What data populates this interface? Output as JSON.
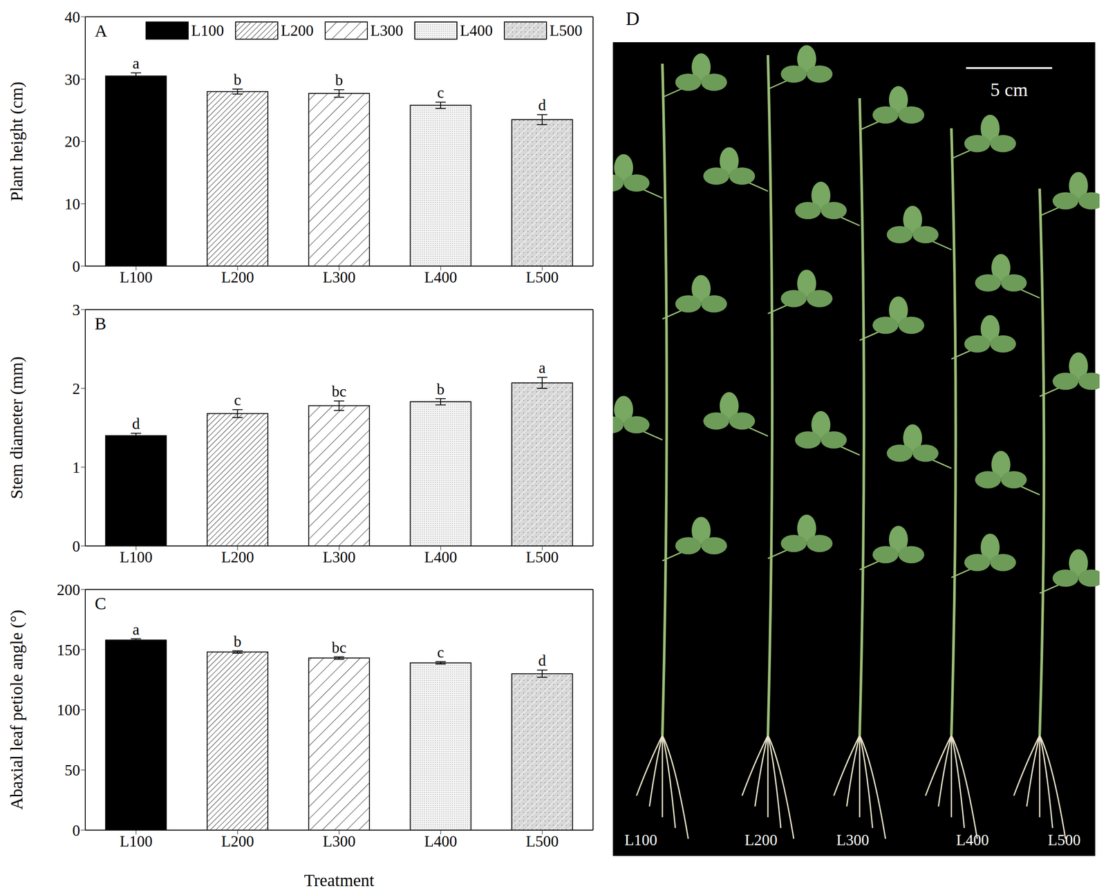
{
  "chart_data": [
    {
      "type": "bar",
      "title": "A",
      "ylabel": "Plant height (cm)",
      "categories": [
        "L100",
        "L200",
        "L300",
        "L400",
        "L500"
      ],
      "values": [
        30.5,
        28.0,
        27.7,
        25.8,
        23.5
      ],
      "error": [
        0.5,
        0.4,
        0.6,
        0.5,
        0.8
      ],
      "significance": [
        "a",
        "b",
        "b",
        "c",
        "d"
      ],
      "ylim": [
        0,
        40
      ],
      "yticks": [
        0,
        10,
        20,
        30,
        40
      ],
      "color": "#000000",
      "legend": "top"
    },
    {
      "type": "bar",
      "title": "B",
      "ylabel": "Stem diameter (mm)",
      "categories": [
        "L100",
        "L200",
        "L300",
        "L400",
        "L500"
      ],
      "values": [
        1.4,
        1.68,
        1.78,
        1.83,
        2.07
      ],
      "error": [
        0.03,
        0.05,
        0.06,
        0.04,
        0.07
      ],
      "significance": [
        "d",
        "c",
        "bc",
        "b",
        "a"
      ],
      "ylim": [
        0,
        3
      ],
      "yticks": [
        0,
        1,
        2,
        3
      ],
      "color": "#000000"
    },
    {
      "type": "bar",
      "title": "C",
      "ylabel": "Abaxial leaf petiole angle (°)",
      "xlabel": "Treatment",
      "categories": [
        "L100",
        "L200",
        "L300",
        "L400",
        "L500"
      ],
      "values": [
        158,
        148,
        143,
        139,
        130
      ],
      "error": [
        1,
        1,
        1,
        1,
        3
      ],
      "significance": [
        "a",
        "b",
        "bc",
        "c",
        "d"
      ],
      "ylim": [
        0,
        200
      ],
      "yticks": [
        0,
        50,
        100,
        150,
        200
      ],
      "color": "#000000"
    }
  ],
  "image": {
    "label": "D",
    "scale_bar": "5 cm",
    "labels": [
      "L100",
      "L200",
      "L300",
      "L400",
      "L500"
    ]
  }
}
